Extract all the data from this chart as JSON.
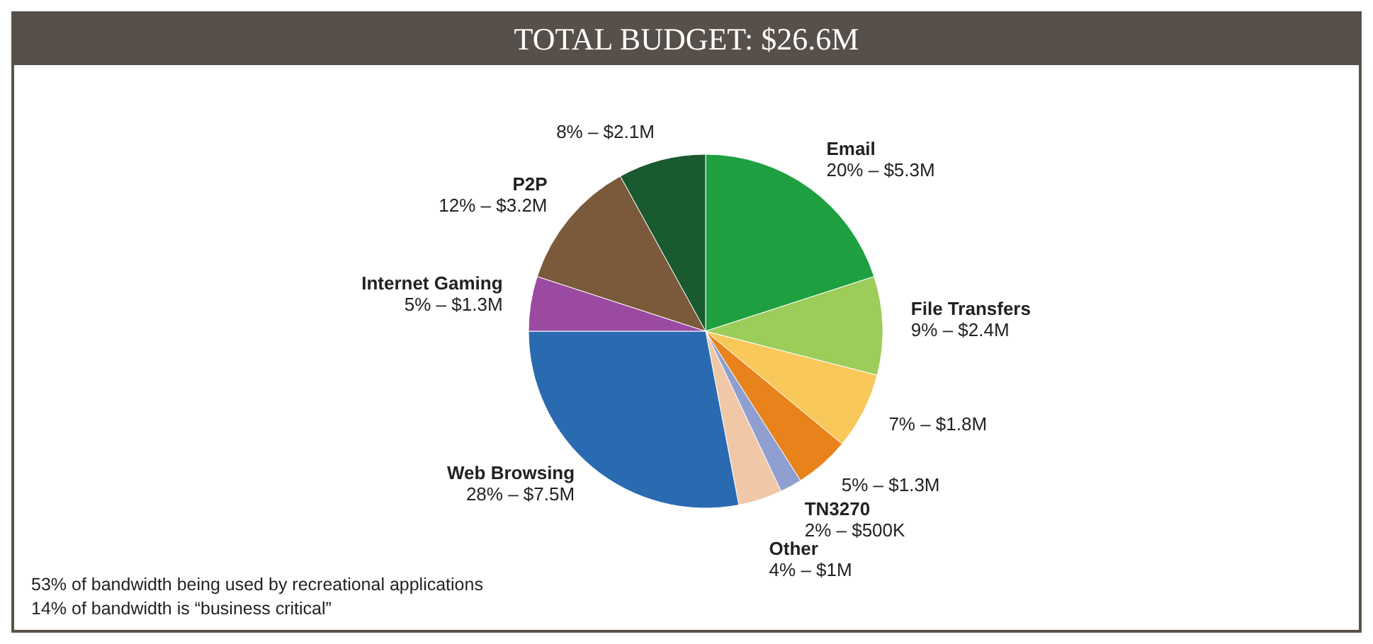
{
  "chart_data": {
    "type": "pie",
    "title": "TOTAL BUDGET: $26.6M",
    "categories": [
      "Email",
      "File Transfers",
      null,
      null,
      "TN3270",
      "Other",
      "Web Browsing",
      "Internet Gaming",
      "P2P",
      null
    ],
    "values": [
      20,
      9,
      7,
      5,
      2,
      4,
      28,
      5,
      12,
      8
    ],
    "value_labels": [
      "20% – $5.3M",
      "9% – $2.4M",
      "7% – $1.8M",
      "5% – $1.3M",
      "2% – $500K",
      "4% – $1M",
      "28% – $7.5M",
      "5% – $1.3M",
      "12% – $3.2M",
      "8% – $2.1M"
    ],
    "colors": [
      "#1fa040",
      "#9ccc5a",
      "#f8c85a",
      "#e8821a",
      "#8fa0d0",
      "#f0c8a8",
      "#2a6ab0",
      "#9a4aa0",
      "#7a5a3a",
      "#1a5a30"
    ],
    "annotations": [
      "53% of bandwidth being used by recreational applications",
      "14% of bandwidth is “business critical”"
    ]
  }
}
